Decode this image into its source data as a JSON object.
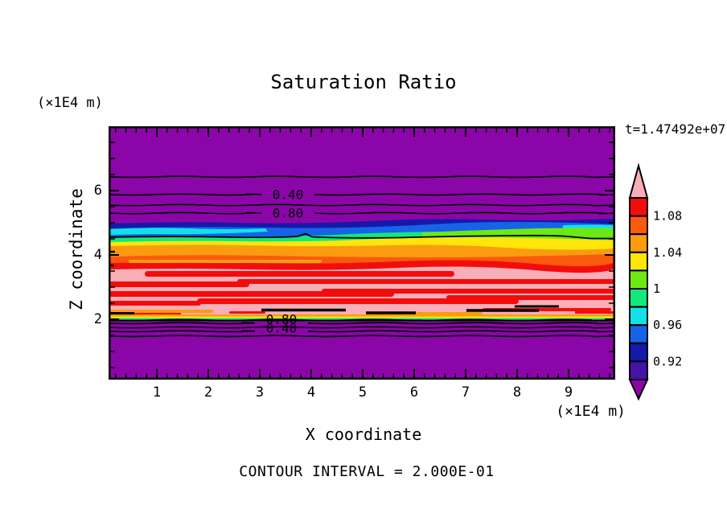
{
  "title": "Saturation Ratio",
  "timestamp": "t=1.47492e+07",
  "x_axis": {
    "label": "X coordinate",
    "unit": "(×1E4 m)",
    "ticks": [
      1,
      2,
      3,
      4,
      5,
      6,
      7,
      8,
      9
    ]
  },
  "z_axis": {
    "label": "Z coordinate",
    "unit": "(×1E4 m)",
    "ticks": [
      2,
      4,
      6
    ]
  },
  "footnote": "CONTOUR INTERVAL = 2.000E-01",
  "colors": {
    "purple": "#8B06A8",
    "violet": "#4513A5",
    "navy": "#1619A8",
    "blue": "#1663E8",
    "cyan": "#14E0E8",
    "green": "#12E87C",
    "yellowgreen": "#6EE812",
    "yellow": "#FFE60A",
    "orange": "#FB9B10",
    "orangered": "#FA5A0D",
    "red": "#F20D0D",
    "pink": "#F9AEB8",
    "line": "#000000"
  },
  "chart_data": {
    "type": "heatmap",
    "title": "Saturation Ratio",
    "xlabel": "X coordinate",
    "ylabel": "Z coordinate",
    "x_unit": "(×1E4 m)",
    "z_unit": "(×1E4 m)",
    "x_range": [
      0,
      9.9
    ],
    "z_range": [
      0.1,
      7.9
    ],
    "x_ticks": [
      1,
      2,
      3,
      4,
      5,
      6,
      7,
      8,
      9
    ],
    "z_ticks": [
      2,
      4,
      6
    ],
    "x_minor_step": 0.2,
    "z_minor_step": 0.5,
    "time_label": "t=1.47492e+07",
    "contour_interval": 0.2,
    "contour_interval_label": "2.000E-01",
    "upper_contours": [
      {
        "value": 0.2,
        "z": 6.43
      },
      {
        "value": 0.4,
        "z": 5.88,
        "label": "0.40"
      },
      {
        "value": 0.6,
        "z": 5.55
      },
      {
        "value": 0.8,
        "z": 5.3,
        "label": "0.80"
      }
    ],
    "lower_contours": [
      {
        "value": 1.0,
        "z": 1.98
      },
      {
        "value": 0.8,
        "z": 1.88,
        "label": "0.80"
      },
      {
        "value": 0.6,
        "z": 1.75
      },
      {
        "value": 0.4,
        "z": 1.63,
        "label": "0.40"
      },
      {
        "value": 0.2,
        "z": 1.48
      }
    ],
    "colorbar": {
      "tick_labels": [
        "1.08",
        "1.04",
        "1",
        "0.96",
        "0.92"
      ],
      "segment_colors_top_to_bottom": [
        "red",
        "orangered",
        "orange",
        "yellow",
        "yellowgreen",
        "green",
        "cyan",
        "blue",
        "navy",
        "violet"
      ],
      "segment_value_ranges": [
        [
          1.08,
          1.1
        ],
        [
          1.06,
          1.08
        ],
        [
          1.04,
          1.06
        ],
        [
          1.02,
          1.04
        ],
        [
          1.0,
          1.02
        ],
        [
          0.98,
          1.0
        ],
        [
          0.96,
          0.98
        ],
        [
          0.94,
          0.96
        ],
        [
          0.92,
          0.94
        ],
        [
          0.9,
          0.92
        ]
      ],
      "above_range_color": "pink",
      "below_range_color": "purple"
    },
    "field_layers_top_to_bottom": [
      {
        "z_from": 5.2,
        "z_to": 7.9,
        "color": "purple",
        "note": "low saturation region crossed by contour lines 0.2-0.8"
      },
      {
        "z_from": 4.5,
        "z_to": 4.8,
        "color": "navy/blue/cyan",
        "note": "values 0.92-0.98"
      },
      {
        "z_from": 4.4,
        "z_to": 4.6,
        "color": "green/yellowgreen",
        "note": "values ~1.0"
      },
      {
        "z_from": 4.0,
        "z_to": 4.45,
        "color": "yellow/orange",
        "note": "values 1.02-1.06"
      },
      {
        "z_from": 2.1,
        "z_to": 4.1,
        "color": "pink with red/orangered streaks",
        "note": "values 1.08-1.10+"
      },
      {
        "z_from": 1.95,
        "z_to": 2.05,
        "color": "thin orange/yellow/green/cyan band",
        "note": "sharp drop through 1.0"
      },
      {
        "z_from": 0.1,
        "z_to": 1.95,
        "color": "purple",
        "note": "low saturation region crossed by contour lines 0.2-1.0"
      }
    ]
  }
}
